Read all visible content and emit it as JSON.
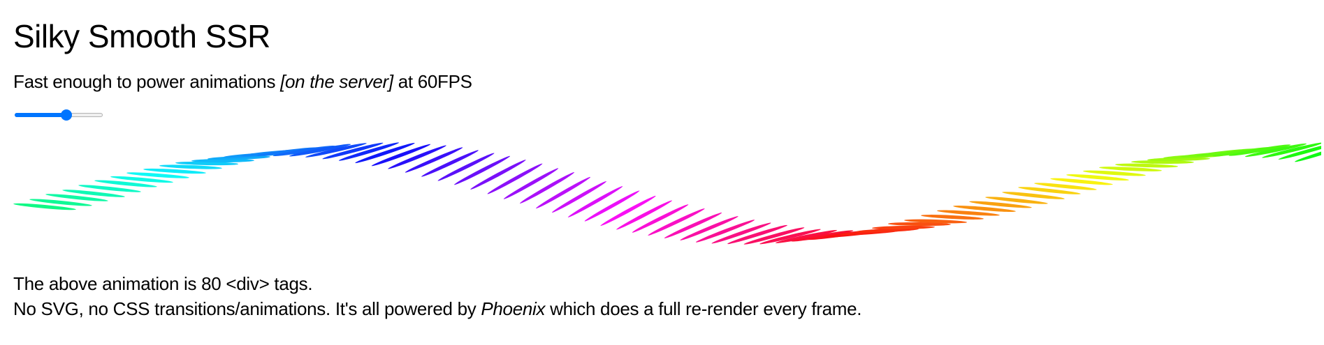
{
  "page": {
    "title": "Silky Smooth SSR",
    "subtitle": {
      "before": "Fast enough to power animations ",
      "emphasis": "[on the server]",
      "after": " at 60FPS"
    },
    "slider": {
      "min": 0,
      "max": 100,
      "value": 60,
      "accent_color": "#0075ff"
    },
    "animation": {
      "div_count": 80
    },
    "caption_line1": "The above animation is 80 <div> tags.",
    "caption_line2": {
      "before": "No SVG, no CSS transitions/animations. It's all powered by ",
      "emphasis": "Phoenix",
      "after": " which does a full re-render every frame."
    }
  }
}
